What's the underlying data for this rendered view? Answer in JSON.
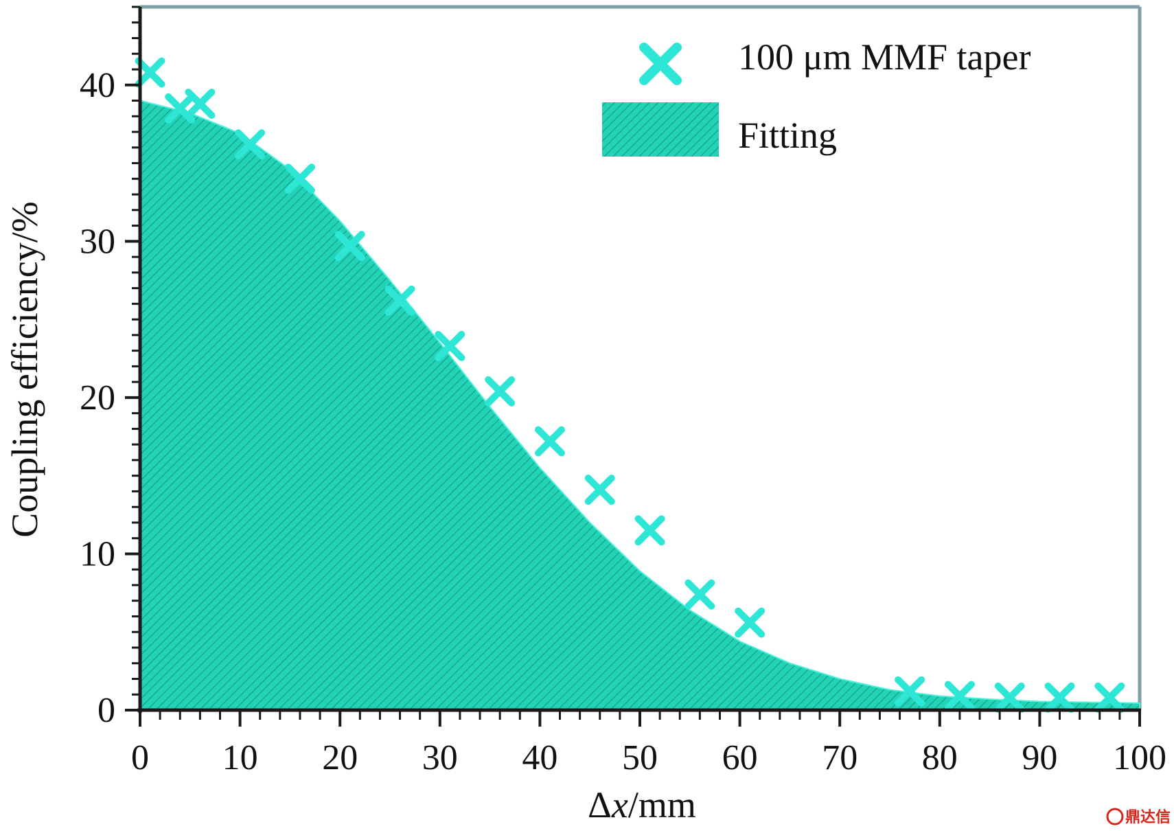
{
  "chart_data": {
    "type": "area",
    "xlabel_prefix": "Δ",
    "xlabel_var": "x",
    "xlabel_suffix": "/mm",
    "ylabel": "Coupling efficiency/%",
    "xlim": [
      0,
      100
    ],
    "ylim": [
      0,
      45
    ],
    "x_ticks": [
      0,
      10,
      20,
      30,
      40,
      50,
      60,
      70,
      80,
      90,
      100
    ],
    "y_ticks": [
      0,
      10,
      20,
      30,
      40
    ],
    "grid": false,
    "legend_position": "top-right",
    "series": [
      {
        "name": "100 μm MMF taper",
        "kind": "scatter",
        "marker": "x",
        "color": "#2ee6d6",
        "x": [
          1,
          4,
          6,
          11,
          16,
          21,
          26,
          31,
          36,
          41,
          46,
          51,
          56,
          61,
          77,
          82,
          87,
          92,
          97
        ],
        "y": [
          40.8,
          38.5,
          38.8,
          36.2,
          34.0,
          29.7,
          26.2,
          23.3,
          20.4,
          17.2,
          14.1,
          11.5,
          7.4,
          5.6,
          1.2,
          0.9,
          0.8,
          0.8,
          0.8
        ]
      },
      {
        "name": "Fitting",
        "kind": "area",
        "color": "#22d2b6",
        "x": [
          0,
          5,
          10,
          15,
          20,
          25,
          30,
          35,
          40,
          45,
          50,
          55,
          60,
          65,
          70,
          75,
          80,
          85,
          90,
          95,
          100
        ],
        "y": [
          39.0,
          38.2,
          36.9,
          34.6,
          31.3,
          27.5,
          23.5,
          19.4,
          15.5,
          12.0,
          8.9,
          6.4,
          4.4,
          3.0,
          2.0,
          1.3,
          0.9,
          0.7,
          0.55,
          0.5,
          0.45
        ]
      }
    ]
  },
  "watermark": {
    "text": "鼎达信"
  }
}
